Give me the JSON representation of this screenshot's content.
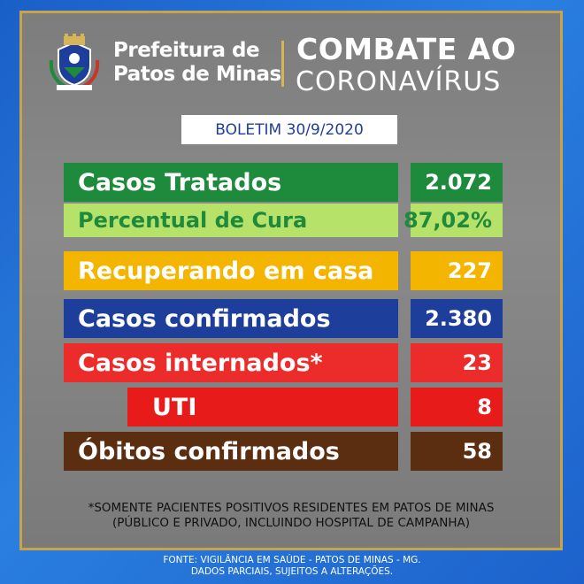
{
  "header": {
    "prefeitura_line1": "Prefeitura de",
    "prefeitura_line2": "Patos de Minas",
    "combate": "COMBATE AO",
    "coronavirus": "CORONAVÍRUS"
  },
  "boletim": "BOLETIM 30/9/2020",
  "rows": [
    {
      "label": "Casos Tratados",
      "value": "2.072",
      "color": "#1d8a3c"
    },
    {
      "label": "Percentual de Cura",
      "value": "87,02%",
      "color": "#b7e26a",
      "text_color": "#1d8a3c"
    },
    {
      "label": "Recuperando em casa",
      "value": "227",
      "color": "#f3b500"
    },
    {
      "label": "Casos confirmados",
      "value": "2.380",
      "color": "#1e3e9c"
    },
    {
      "label": "Casos internados*",
      "value": "23",
      "color": "#ec2b2b"
    },
    {
      "label": "UTI",
      "value": "8",
      "color": "#e81b1b"
    },
    {
      "label": "Óbitos confirmados",
      "value": "58",
      "color": "#5b2e12"
    }
  ],
  "note_line1": "*SOMENTE PACIENTES POSITIVOS RESIDENTES EM PATOS DE MINAS",
  "note_line2": "(PÚBLICO E PRIVADO, INCLUINDO HOSPITAL DE CAMPANHA)",
  "fonte_line1": "FONTE: VIGILÂNCIA EM SAÚDE - PATOS DE MINAS - MG.",
  "fonte_line2": "DADOS PARCIAIS, SUJEITOS A ALTERAÇÕES."
}
